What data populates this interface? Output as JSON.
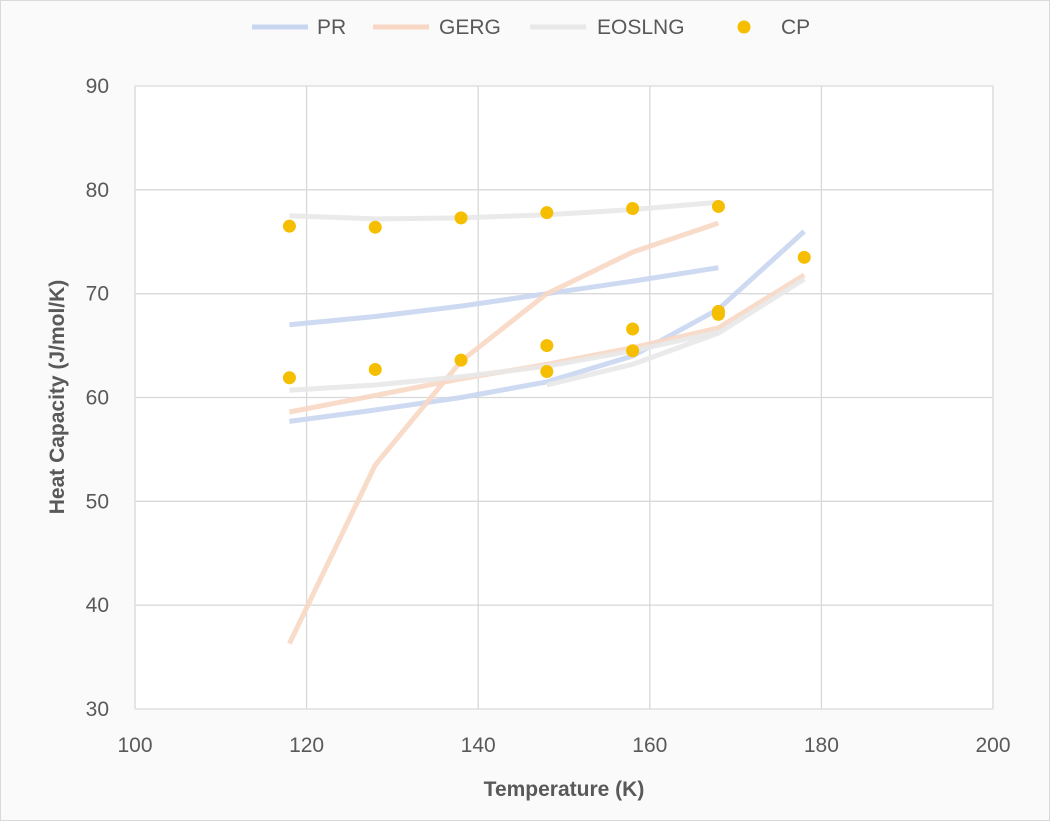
{
  "chart_data": {
    "type": "scatter",
    "title": "",
    "xlabel": "Temperature (K)",
    "ylabel": "Heat Capacity (J/mol/K)",
    "xlim": [
      100,
      200
    ],
    "ylim": [
      30,
      90
    ],
    "xticks": [
      100,
      120,
      140,
      160,
      180,
      200
    ],
    "yticks": [
      30,
      40,
      50,
      60,
      70,
      80,
      90
    ],
    "grid": true,
    "legend_position": "top",
    "legend": [
      "PR",
      "GERG",
      "EOSLNG",
      "CP"
    ],
    "colors": {
      "PR": "#c9d6f0",
      "GERG": "#f8d7c4",
      "EOSLNG": "#e8e8e8",
      "CP": "#f5be00"
    },
    "series": [
      {
        "name": "PR",
        "kind": "line",
        "color": "#c9d6f0",
        "x": [
          118,
          128,
          138,
          148,
          158,
          168
        ],
        "y": [
          67.0,
          67.8,
          68.8,
          70.0,
          71.2,
          72.5
        ]
      },
      {
        "name": "PR",
        "kind": "line",
        "color": "#c9d6f0",
        "x": [
          118,
          128,
          138,
          148,
          158,
          168,
          178
        ],
        "y": [
          57.7,
          58.8,
          60.0,
          61.5,
          64.0,
          68.5,
          76.0
        ]
      },
      {
        "name": "GERG",
        "kind": "line",
        "color": "#f8d7c4",
        "x": [
          118,
          128,
          138,
          148,
          158,
          168
        ],
        "y": [
          36.3,
          53.5,
          63.5,
          70.0,
          74.0,
          76.8
        ]
      },
      {
        "name": "GERG",
        "kind": "line",
        "color": "#f8d7c4",
        "x": [
          118,
          128,
          138,
          148,
          158,
          168,
          178
        ],
        "y": [
          58.6,
          60.2,
          61.8,
          63.2,
          64.8,
          66.7,
          71.8
        ]
      },
      {
        "name": "EOSLNG",
        "kind": "line",
        "color": "#e8e8e8",
        "x": [
          118,
          128,
          138,
          148,
          158,
          168
        ],
        "y": [
          77.5,
          77.2,
          77.3,
          77.6,
          78.1,
          78.8
        ]
      },
      {
        "name": "EOSLNG",
        "kind": "line",
        "color": "#e8e8e8",
        "x": [
          118,
          128,
          138,
          148,
          158,
          168
        ],
        "y": [
          60.7,
          61.2,
          62.0,
          63.0,
          64.5,
          66.3
        ]
      },
      {
        "name": "EOSLNG",
        "kind": "line",
        "color": "#e8e8e8",
        "x": [
          148,
          158,
          168,
          178
        ],
        "y": [
          61.2,
          63.2,
          66.2,
          71.4
        ]
      },
      {
        "name": "CP",
        "kind": "scatter",
        "color": "#f5be00",
        "x": [
          118,
          128,
          138,
          148,
          158,
          168,
          118,
          128,
          138,
          148,
          158,
          168,
          148,
          158,
          168,
          178
        ],
        "y": [
          76.5,
          76.4,
          77.3,
          77.8,
          78.2,
          78.4,
          61.9,
          62.7,
          63.6,
          65.0,
          66.6,
          68.3,
          62.5,
          64.5,
          68.0,
          73.5
        ]
      }
    ]
  }
}
